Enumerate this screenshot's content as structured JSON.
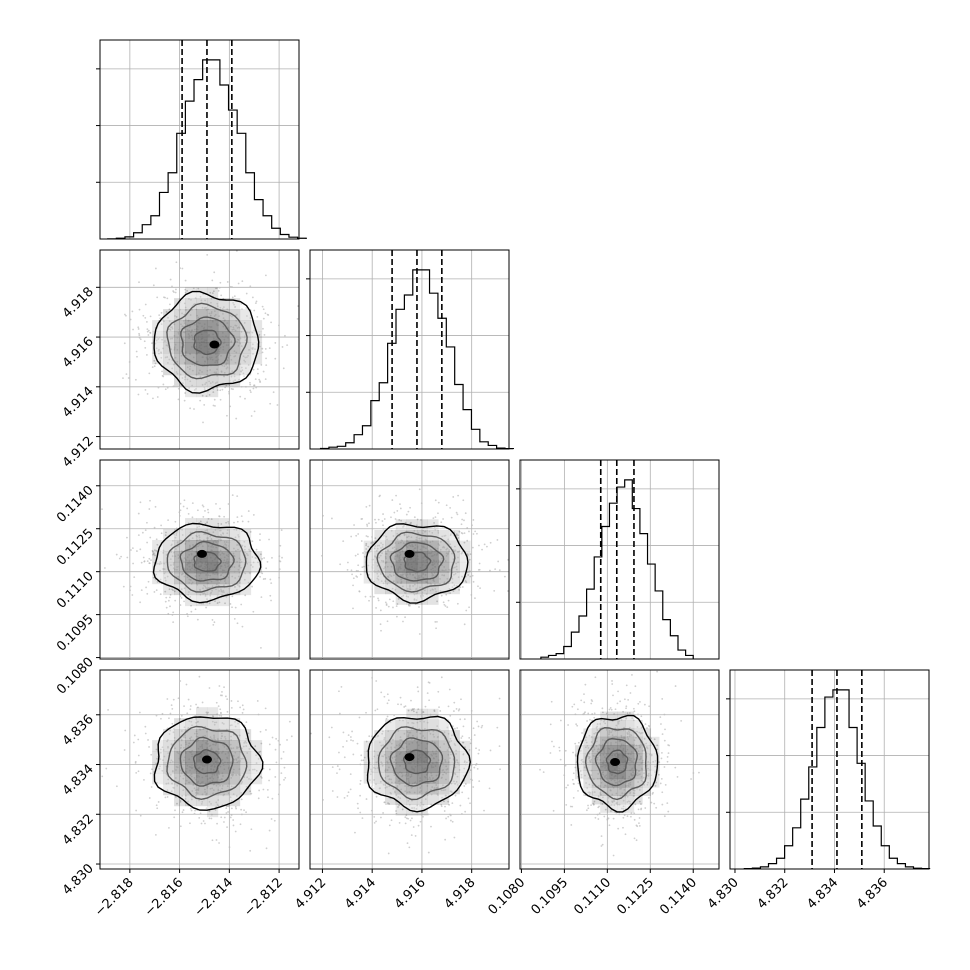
{
  "chart_data": {
    "type": "corner",
    "grid": true,
    "parameters": [
      {
        "range": [
          -2.8192,
          -2.8112
        ],
        "ticks": [
          "−2.818",
          "−2.816",
          "−2.814",
          "−2.812"
        ],
        "tick_values": [
          -2.818,
          -2.816,
          -2.814,
          -2.812
        ],
        "mean": -2.8149,
        "sd": 0.00105,
        "quantiles": [
          -2.8159,
          -2.8149,
          -2.8139
        ],
        "hist": [
          0.1,
          0.4,
          1.2,
          3.5,
          8,
          13,
          26,
          37,
          59,
          77,
          89,
          100,
          100,
          86,
          72,
          59,
          37,
          22,
          13,
          6,
          2.5,
          1,
          0.4
        ]
      },
      {
        "range": [
          4.9115,
          4.9195
        ],
        "ticks": [
          "4.912",
          "4.914",
          "4.916",
          "4.918"
        ],
        "tick_values": [
          4.912,
          4.914,
          4.916,
          4.918
        ],
        "mean": 4.9158,
        "sd": 0.00102,
        "quantiles": [
          4.9148,
          4.9158,
          4.9168
        ],
        "hist": [
          0.3,
          1,
          1.5,
          3.5,
          8,
          13,
          27,
          37,
          59,
          78,
          86,
          100,
          100,
          87,
          73,
          57,
          36,
          22,
          11,
          4,
          2,
          0.5,
          0.2
        ]
      },
      {
        "range": [
          0.10795,
          0.1149
        ],
        "ticks": [
          "0.1080",
          "0.1095",
          "0.1110",
          "0.1125",
          "0.1140"
        ],
        "tick_values": [
          0.108,
          0.1095,
          0.111,
          0.1125,
          0.114
        ],
        "mean": 0.11134,
        "sd": 0.0007,
        "quantiles": [
          0.11077,
          0.11133,
          0.11193
        ],
        "hist": [
          1,
          2,
          3,
          7,
          15,
          24,
          39,
          57,
          74,
          87,
          96,
          100,
          84,
          70,
          53,
          38,
          22,
          13,
          5,
          2
        ]
      },
      {
        "range": [
          4.8298,
          4.8378
        ],
        "ticks": [
          "4.830",
          "4.832",
          "4.834",
          "4.836"
        ],
        "tick_values": [
          4.83,
          4.832,
          4.834,
          4.836
        ],
        "mean": 4.8341,
        "sd": 0.00098,
        "quantiles": [
          4.8331,
          4.8341,
          4.8351
        ],
        "hist": [
          0.2,
          0.5,
          1.2,
          3,
          6,
          13,
          23,
          39,
          57,
          79,
          96,
          100,
          100,
          79,
          59,
          38,
          24,
          13,
          6,
          3,
          1.2,
          0.4,
          0.2
        ]
      }
    ],
    "panels": [
      {
        "row": 0,
        "col": 0,
        "kind": "hist"
      },
      {
        "row": 1,
        "col": 0,
        "kind": "2d",
        "peak": [
          -2.8146,
          4.9157
        ]
      },
      {
        "row": 1,
        "col": 1,
        "kind": "hist"
      },
      {
        "row": 2,
        "col": 0,
        "kind": "2d",
        "peak": [
          -2.8151,
          0.11162
        ]
      },
      {
        "row": 2,
        "col": 1,
        "kind": "2d",
        "peak": [
          4.9155,
          0.11162
        ]
      },
      {
        "row": 2,
        "col": 2,
        "kind": "hist"
      },
      {
        "row": 3,
        "col": 0,
        "kind": "2d",
        "peak": [
          -2.8149,
          4.8342
        ]
      },
      {
        "row": 3,
        "col": 1,
        "kind": "2d",
        "peak": [
          4.9155,
          4.8343
        ]
      },
      {
        "row": 3,
        "col": 2,
        "kind": "2d",
        "peak": [
          0.11127,
          4.8341
        ]
      },
      {
        "row": 3,
        "col": 3,
        "kind": "hist"
      }
    ],
    "contour_sigma_levels": [
      0.5,
      1,
      1.5,
      2
    ],
    "quantile_line_style": "dashed",
    "colors": {
      "contour": "#000000",
      "scatter": "#bbbbbb",
      "grid": "#b0b0b0",
      "density": "#000000"
    }
  }
}
